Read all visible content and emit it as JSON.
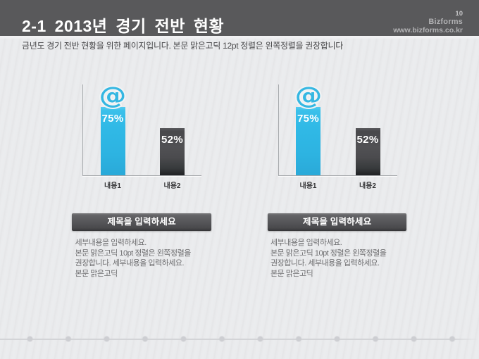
{
  "header": {
    "title": "2-1 2013년 경기 전반 현황",
    "page_number": "10",
    "brand": "Bizforms",
    "website": "www.bizforms.co.kr"
  },
  "subtitle": "금년도 경기 전반 현황을 위한 페이지입니다. 본문 맑은고딕 12pt 정렬은 왼쪽정렬을 권장합니다",
  "colors": {
    "header_background": "#59595b",
    "accent_blue": "#2fb8e5",
    "bar_dark": "#3a3a3d",
    "background": "#e9eaec",
    "title_bar": "#4a4a4d"
  },
  "chart_data": [
    {
      "type": "bar",
      "categories": [
        "내용1",
        "내용2"
      ],
      "values": [
        75,
        52
      ],
      "data_labels": [
        "75%",
        "52%"
      ],
      "series_colors": [
        "#2fb8e5",
        "#3a3a3d"
      ],
      "ylim": [
        0,
        100
      ],
      "icon": {
        "name": "at-sign",
        "series_index": 0
      }
    },
    {
      "type": "bar",
      "categories": [
        "내용1",
        "내용2"
      ],
      "values": [
        75,
        52
      ],
      "data_labels": [
        "75%",
        "52%"
      ],
      "series_colors": [
        "#2fb8e5",
        "#3a3a3d"
      ],
      "ylim": [
        0,
        100
      ],
      "icon": {
        "name": "at-sign",
        "series_index": 0
      }
    }
  ],
  "panels": [
    {
      "title": "제목을 입력하세요",
      "body_lines": [
        "세부내용을 입력하세요.",
        "본문 맑은고딕 10pt 정렬은 왼쪽정렬을",
        "권장합니다. 세부내용을 입력하세요.",
        "본문 맑은고딕"
      ]
    },
    {
      "title": "제목을 입력하세요",
      "body_lines": [
        "세부내용을 입력하세요.",
        "본문 맑은고딕 10pt 정렬은 왼쪽정렬을",
        "권장합니다. 세부내용을 입력하세요.",
        "본문 맑은고딕"
      ]
    }
  ]
}
